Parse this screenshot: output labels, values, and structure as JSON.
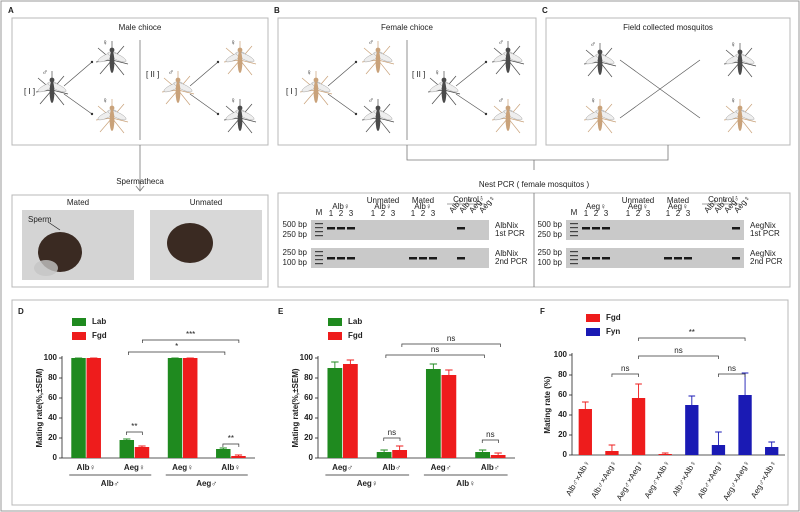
{
  "figure": {
    "a": {
      "letter": "A",
      "title": "Male chioce",
      "roman": [
        "[ I ]",
        "[ II ]"
      ]
    },
    "b": {
      "letter": "B",
      "title": "Female chioce",
      "roman": [
        "[ I ]",
        "[ II ]"
      ]
    },
    "c": {
      "letter": "C",
      "title": "Field collected mosquitos"
    },
    "symbols": {
      "male": "♂",
      "female": "♀"
    },
    "spermatheca": {
      "title": "Spermatheca",
      "left": "Mated",
      "right": "Unmated",
      "arrow": "Sperm"
    },
    "pcr": {
      "title": "Nest PCR ( female mosquitos )",
      "gels": [
        {
          "marker": "M",
          "groups": [
            [
              "Alb♀"
            ],
            [
              "Unmated",
              "Alb♀"
            ],
            [
              "Mated",
              "Alb♀"
            ]
          ],
          "lanes": [
            "1",
            "2",
            "3"
          ],
          "control": "Control",
          "controls": [
            "Alb♂",
            "Alb♀",
            "Aeg♂",
            "Aeg♀"
          ],
          "sizes": [
            [
              "500 bp",
              "250 bp"
            ],
            [
              "250 bp",
              "100 bp"
            ]
          ],
          "rows": [
            [
              "AlbNix",
              "1st PCR"
            ],
            [
              "AlbNix",
              "2nd PCR"
            ]
          ]
        },
        {
          "marker": "M",
          "groups": [
            [
              "Aeg♀"
            ],
            [
              "Unmated",
              "Aeg♀"
            ],
            [
              "Mated",
              "Aeg♀"
            ]
          ],
          "lanes": [
            "1",
            "2",
            "3"
          ],
          "control": "Control",
          "controls": [
            "Alb♂",
            "Alb♀",
            "Aeg♂",
            "Aeg♀"
          ],
          "sizes": [
            [
              "500 bp",
              "250 bp"
            ],
            [
              "250 bp",
              "100 bp"
            ]
          ],
          "rows": [
            [
              "AegNix",
              "1st PCR"
            ],
            [
              "AegNix",
              "2nd PCR"
            ]
          ]
        }
      ]
    }
  },
  "chart_data": [
    {
      "type": "bar",
      "letter": "D",
      "ylabel": "Mating rate(%,±SEM)",
      "categories": [
        "Alb♀",
        "Aeg♀",
        "Aeg♀",
        "Alb♀"
      ],
      "groups": [
        "Alb♂",
        "Aeg♂"
      ],
      "series": [
        {
          "name": "Lab",
          "color": "#1f8a1f",
          "values": [
            100,
            18,
            100,
            9
          ],
          "errors": [
            0,
            1,
            0,
            1
          ]
        },
        {
          "name": "Fgd",
          "color": "#ee1c1c",
          "values": [
            100,
            11,
            100,
            2
          ],
          "errors": [
            0,
            1,
            0,
            1
          ]
        }
      ],
      "ylim": [
        0,
        100
      ],
      "yticks": [
        0,
        20,
        40,
        60,
        80,
        100
      ],
      "legend": "top-left",
      "annotations": [
        "**",
        "**",
        "*",
        "***"
      ]
    },
    {
      "type": "bar",
      "letter": "E",
      "ylabel": "Mating rate(%,±SEM)",
      "categories": [
        "Aeg♂",
        "Alb♂",
        "Aeg♂",
        "Alb♂"
      ],
      "groups": [
        "Aeg♀",
        "Alb♀"
      ],
      "series": [
        {
          "name": "Lab",
          "color": "#1f8a1f",
          "values": [
            90,
            6,
            89,
            6
          ],
          "errors": [
            6,
            2,
            5,
            2
          ]
        },
        {
          "name": "Fgd",
          "color": "#ee1c1c",
          "values": [
            94,
            8,
            83,
            3
          ],
          "errors": [
            4,
            4,
            5,
            2
          ]
        }
      ],
      "ylim": [
        0,
        100
      ],
      "yticks": [
        0,
        20,
        40,
        60,
        80,
        100
      ],
      "legend": "top-left",
      "annotations": [
        "ns",
        "ns",
        "ns",
        "ns"
      ]
    },
    {
      "type": "bar",
      "letter": "F",
      "ylabel": "Mating rate (%)",
      "categories": [
        "Alb♂×Alb♀",
        "Alb♂×Aeg♀",
        "Aeg♂×Aeg♀",
        "Aeg♂×Alb♀",
        "Alb♂×Alb♀",
        "Alb♂×Aeg♀",
        "Aeg♂×Aeg♀",
        "Aeg♂×Alb♀"
      ],
      "series": [
        {
          "name": "Fgd",
          "color": "#ee1c1c",
          "values": [
            46,
            4,
            57,
            1,
            null,
            null,
            null,
            null
          ],
          "errors": [
            7,
            6,
            14,
            1,
            null,
            null,
            null,
            null
          ]
        },
        {
          "name": "Fyn",
          "color": "#1a1ab4",
          "values": [
            null,
            null,
            null,
            null,
            50,
            10,
            60,
            8
          ],
          "errors": [
            null,
            null,
            null,
            null,
            9,
            13,
            22,
            5
          ]
        }
      ],
      "ylim": [
        0,
        100
      ],
      "yticks": [
        0,
        20,
        40,
        60,
        80,
        100
      ],
      "legend": "top-left",
      "annotations": [
        "ns",
        "ns",
        "ns",
        "**"
      ]
    }
  ]
}
